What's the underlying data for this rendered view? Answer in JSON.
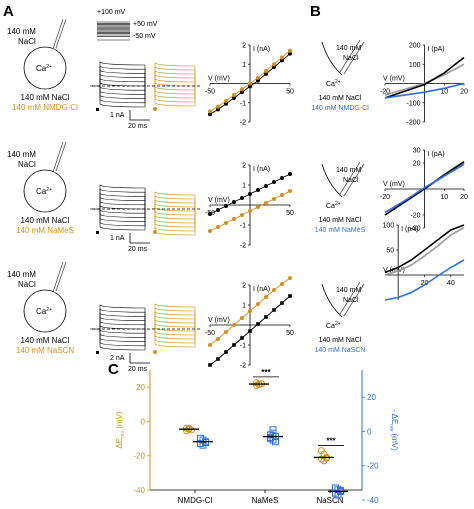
{
  "panels": {
    "a": "A",
    "b": "B",
    "c": "C"
  },
  "colors": {
    "black": "#000000",
    "orange": "#d4901c",
    "blue": "#2f6fe0",
    "grey": "#9a9a9a"
  },
  "protocol": {
    "top": "+100 mV",
    "v50": "+50 mV",
    "vm50": "-50 mV"
  },
  "rowsA": [
    {
      "cell_line1": "140 mM",
      "cell_line2": "NaCl",
      "ion": "Ca",
      "ion_sup": "2+",
      "sol1": "140 mM NaCl",
      "sol2": "140 mM NMDG-Cl",
      "scale_i": "1 nA",
      "scale_t": "20 ms"
    },
    {
      "cell_line1": "140 mM",
      "cell_line2": "NaCl",
      "ion": "Ca",
      "ion_sup": "2+",
      "sol1": "140 mM NaCl",
      "sol2": "140 mM NaMeS",
      "scale_i": "1 nA",
      "scale_t": "20 ms"
    },
    {
      "cell_line1": "140 mM",
      "cell_line2": "NaCl",
      "ion": "Ca",
      "ion_sup": "2+",
      "sol1": "140 mM NaCl",
      "sol2": "140 mM NaSCN",
      "scale_i": "2 nA",
      "scale_t": "20 ms"
    }
  ],
  "rowsB": [
    {
      "cell_line1": "140 mM",
      "cell_line2": "NaCl",
      "ion": "Ca",
      "ion_sup": "2+",
      "sol1": "140 mM NaCl",
      "sol2": "140 mM NMDG-Cl"
    },
    {
      "cell_line1": "140 mM",
      "cell_line2": "NaCl",
      "ion": "Ca",
      "ion_sup": "2+",
      "sol1": "140 mM NaCl",
      "sol2": "140 mM NaMeS"
    },
    {
      "cell_line1": "140 mM",
      "cell_line2": "NaCl",
      "ion": "Ca",
      "ion_sup": "2+",
      "sol1": "140 mM NaCl",
      "sol2": "140 mM NaSCN"
    }
  ],
  "chart_data": [
    {
      "type": "line",
      "panel": "A",
      "ylabel": "I (nA)",
      "xlabel": "V (mV)",
      "xticks": [
        "-50",
        "50"
      ],
      "yticks": [
        "2",
        "1",
        "-1",
        "-2"
      ],
      "xlim": [
        -50,
        50
      ],
      "ylim": [
        -2,
        2
      ],
      "series": [
        {
          "color": "black",
          "x": [
            -50,
            -40,
            -30,
            -20,
            -10,
            0,
            10,
            20,
            30,
            40,
            50
          ],
          "y": [
            -1.6,
            -1.35,
            -1.05,
            -0.75,
            -0.45,
            -0.15,
            0.15,
            0.5,
            0.85,
            1.2,
            1.55
          ]
        },
        {
          "color": "orange",
          "x": [
            -50,
            -40,
            -30,
            -20,
            -10,
            0,
            10,
            20,
            30,
            40,
            50
          ],
          "y": [
            -1.45,
            -1.2,
            -0.9,
            -0.6,
            -0.3,
            0.0,
            0.3,
            0.65,
            1.0,
            1.35,
            1.7
          ]
        }
      ]
    },
    {
      "type": "line",
      "panel": "A",
      "ylabel": "I (nA)",
      "xlabel": "V (mV)",
      "xticks": [
        "-50",
        "50"
      ],
      "yticks": [
        "2",
        "1",
        "-1",
        "-2"
      ],
      "xlim": [
        -50,
        50
      ],
      "ylim": [
        -2,
        2
      ],
      "series": [
        {
          "color": "black",
          "x": [
            -50,
            -40,
            -30,
            -20,
            -10,
            0,
            10,
            20,
            30,
            40,
            50
          ],
          "y": [
            -0.45,
            -0.25,
            -0.05,
            0.15,
            0.35,
            0.55,
            0.75,
            0.95,
            1.15,
            1.35,
            1.55
          ]
        },
        {
          "color": "orange",
          "x": [
            -50,
            -40,
            -30,
            -20,
            -10,
            0,
            10,
            20,
            30,
            40,
            50
          ],
          "y": [
            -1.3,
            -1.1,
            -0.9,
            -0.7,
            -0.5,
            -0.3,
            -0.1,
            0.1,
            0.3,
            0.5,
            0.7
          ]
        }
      ]
    },
    {
      "type": "line",
      "panel": "A",
      "ylabel": "I (nA)",
      "xlabel": "V (mV)",
      "xticks": [
        "-50",
        "50"
      ],
      "yticks": [
        "2",
        "1",
        "-1",
        "-2"
      ],
      "xlim": [
        -50,
        50
      ],
      "ylim": [
        -2,
        2
      ],
      "series": [
        {
          "color": "black",
          "x": [
            -50,
            -40,
            -30,
            -20,
            -10,
            0,
            10,
            20,
            30,
            40,
            50
          ],
          "y": [
            -2.0,
            -1.7,
            -1.35,
            -1.0,
            -0.65,
            -0.3,
            0.05,
            0.4,
            0.75,
            1.1,
            1.45
          ]
        },
        {
          "color": "orange",
          "x": [
            -50,
            -40,
            -30,
            -20,
            -10,
            0,
            10,
            20,
            30,
            40,
            50
          ],
          "y": [
            -1.0,
            -0.7,
            -0.35,
            0.0,
            0.35,
            0.7,
            1.05,
            1.4,
            1.75,
            2.05,
            2.35
          ]
        }
      ]
    },
    {
      "type": "line",
      "panel": "B",
      "ylabel": "I (pA)",
      "xlabel": "V (mV)",
      "xticks": [
        "-20",
        "10",
        "20"
      ],
      "yticks": [
        "200",
        "100",
        "-100",
        "-200"
      ],
      "xlim": [
        -20,
        20
      ],
      "ylim": [
        -200,
        200
      ],
      "series": [
        {
          "color": "grey",
          "x": [
            -20,
            -10,
            0,
            10,
            20
          ],
          "y": [
            -60,
            -30,
            0,
            45,
            100
          ]
        },
        {
          "color": "black",
          "x": [
            -20,
            -10,
            0,
            10,
            20
          ],
          "y": [
            -75,
            -40,
            -5,
            55,
            135
          ]
        },
        {
          "color": "blue",
          "x": [
            -20,
            -10,
            0,
            10,
            20
          ],
          "y": [
            -75,
            -60,
            -45,
            -25,
            0
          ]
        }
      ]
    },
    {
      "type": "line",
      "panel": "B",
      "ylabel": "I (pA)",
      "xlabel": "V (mV)",
      "xticks": [
        "-20",
        "10",
        "20"
      ],
      "yticks": [
        "30",
        "20",
        "-20",
        "-30"
      ],
      "xlim": [
        -20,
        20
      ],
      "ylim": [
        -30,
        30
      ],
      "series": [
        {
          "color": "grey",
          "x": [
            -20,
            -10,
            0,
            10,
            20
          ],
          "y": [
            -20,
            -10,
            0,
            10,
            20
          ]
        },
        {
          "color": "black",
          "x": [
            -20,
            -10,
            0,
            10,
            20
          ],
          "y": [
            -20,
            -10,
            0,
            11,
            21
          ]
        },
        {
          "color": "blue",
          "x": [
            -20,
            -10,
            0,
            10,
            20
          ],
          "y": [
            -18,
            -9,
            1,
            10,
            19
          ]
        }
      ]
    },
    {
      "type": "line",
      "panel": "B",
      "ylabel": "I (pA)",
      "xlabel": "V (mV)",
      "xticks": [
        "20",
        "40"
      ],
      "yticks": [
        "100",
        "50"
      ],
      "xlim": [
        -10,
        50
      ],
      "ylim": [
        -50,
        100
      ],
      "series": [
        {
          "color": "grey",
          "x": [
            -10,
            0,
            10,
            20,
            30,
            40,
            50
          ],
          "y": [
            0,
            8,
            20,
            38,
            58,
            80,
            95
          ]
        },
        {
          "color": "black",
          "x": [
            -10,
            0,
            10,
            20,
            30,
            40,
            50
          ],
          "y": [
            5,
            15,
            30,
            50,
            70,
            90,
            100
          ]
        },
        {
          "color": "blue",
          "x": [
            -10,
            0,
            10,
            20,
            30,
            40,
            50
          ],
          "y": [
            -50,
            -45,
            -35,
            -20,
            -2,
            15,
            30
          ]
        }
      ]
    },
    {
      "type": "scatter",
      "panel": "C",
      "categories": [
        "NMDG-Cl",
        "NaMeS",
        "NaSCN"
      ],
      "ylabel_left": "ΔE",
      "ylabel_left_sub": "rev",
      "ylabel_left_unit": " (mV)",
      "ylabel_right": "- ΔE",
      "ylabel_right_sub": "rev",
      "ylabel_right_unit": " (mV)",
      "yticks_left": [
        "20",
        "0",
        "-20",
        "-40"
      ],
      "yticks_right": [
        "20",
        "0",
        "-20",
        "-40"
      ],
      "ylim": [
        -40,
        30
      ],
      "significance": [
        {
          "between": "NaMeS",
          "label": "***"
        },
        {
          "between": "NaSCN",
          "label": "***"
        }
      ],
      "series": [
        {
          "name": "orange",
          "color": "orange",
          "values": [
            [
              -4,
              -4.5,
              -5,
              -5.5,
              -4
            ],
            [
              21,
              21.5,
              22,
              22.5,
              21.8
            ],
            [
              -17,
              -19,
              -21,
              -22,
              -23,
              -21.5
            ]
          ]
        },
        {
          "name": "blue",
          "color": "blue",
          "values": [
            [
              -4,
              -5,
              -6,
              -7,
              -8,
              -6.5
            ],
            [
              -4,
              -5,
              -3,
              -2,
              1,
              -6,
              -3.5,
              -1
            ],
            [
              -33,
              -34,
              -35,
              -36,
              -37,
              -34.5
            ]
          ]
        }
      ],
      "means": {
        "orange": [
          -4.5,
          21.8,
          -21
        ],
        "blue": [
          -6,
          -3,
          -35
        ]
      }
    }
  ]
}
